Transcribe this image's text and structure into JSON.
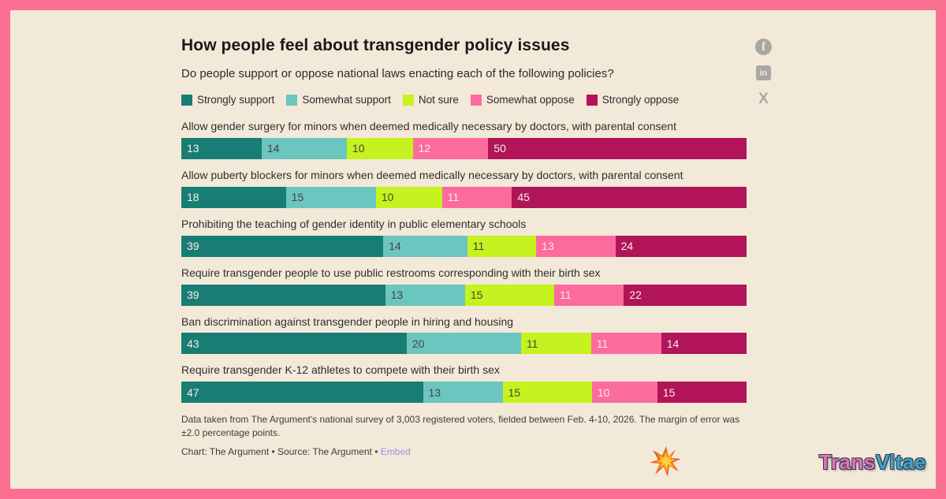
{
  "theme": {
    "frame_color": "#fb6f93",
    "background": "#f3e9d9"
  },
  "header": {
    "title": "How people feel about transgender policy issues",
    "subtitle": "Do people support or oppose national laws enacting each of the following policies?"
  },
  "chart_data": {
    "type": "bar",
    "orientation": "horizontal",
    "stacked": true,
    "unit": "percent of respondents",
    "xlim": [
      0,
      100
    ],
    "legend_position": "top",
    "categories": [
      "Allow gender surgery for minors when deemed medically necessary by doctors, with parental consent",
      "Allow puberty blockers for minors when deemed medically necessary by doctors, with parental consent",
      "Prohibiting the teaching of gender identity in public elementary schools",
      "Require transgender people to use public restrooms corresponding with their birth sex",
      "Ban discrimination against transgender people in hiring and housing",
      "Require transgender K-12 athletes to compete with their birth sex"
    ],
    "series": [
      {
        "name": "Strongly support",
        "color": "#187d74",
        "text_color": "#f7f0e0",
        "values": [
          13,
          18,
          39,
          39,
          43,
          47
        ]
      },
      {
        "name": "Somewhat support",
        "color": "#6ac6bf",
        "text_color": "#45453a",
        "values": [
          14,
          15,
          14,
          13,
          20,
          13
        ]
      },
      {
        "name": "Not sure",
        "color": "#c6f21f",
        "text_color": "#45453a",
        "values": [
          10,
          10,
          11,
          15,
          11,
          15
        ]
      },
      {
        "name": "Somewhat oppose",
        "color": "#fb6b9e",
        "text_color": "#f7f0e0",
        "values": [
          12,
          11,
          13,
          11,
          11,
          10
        ]
      },
      {
        "name": "Strongly oppose",
        "color": "#b11459",
        "text_color": "#f7f0e0",
        "values": [
          50,
          45,
          24,
          22,
          14,
          15
        ]
      }
    ]
  },
  "footer": {
    "note": "Data taken from The Argument's national survey of 3,003 registered voters, fielded between Feb. 4-10, 2026. The margin of error was ±2.0 percentage points.",
    "credit": "Chart: The Argument • Source: The Argument • ",
    "embed_label": "Embed",
    "embed_color": "#a48be0"
  },
  "social": {
    "color": "#a7a7a3",
    "facebook_glyph": "f",
    "linkedin_glyph": "in",
    "x_glyph": "X"
  },
  "logo": {
    "trans": "Trans",
    "vitae": "Vitae",
    "trans_color": "#f06fae",
    "vitae_color": "#47a3c4"
  }
}
